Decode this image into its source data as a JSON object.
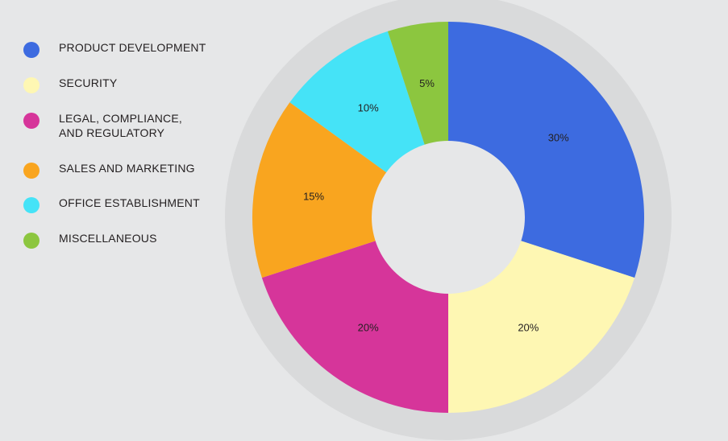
{
  "chart_data": {
    "type": "pie",
    "subtype": "donut",
    "categories": [
      "PRODUCT DEVELOPMENT",
      "SECURITY",
      "LEGAL, COMPLIANCE,\nAND REGULATORY",
      "SALES AND MARKETING",
      "OFFICE ESTABLISHMENT",
      "MISCELLANEOUS"
    ],
    "values": [
      30,
      20,
      20,
      15,
      10,
      5
    ],
    "data_labels": [
      "30%",
      "20%",
      "20%",
      "15%",
      "10%",
      "5%"
    ],
    "colors": [
      "#3d6be0",
      "#fef7b3",
      "#d6359a",
      "#f9a51f",
      "#45e3f7",
      "#8cc63f"
    ],
    "start_angle": "12 o'clock",
    "direction": "clockwise",
    "legend": "left"
  },
  "background_color": "#e6e7e8",
  "shadow_color": "#d9dadb"
}
